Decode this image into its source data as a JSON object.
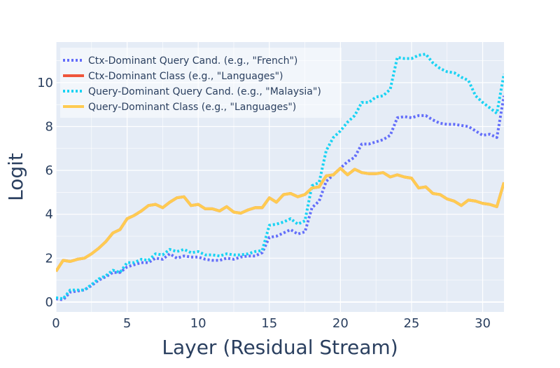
{
  "chart_data": {
    "type": "line",
    "xlabel": "Layer (Residual Stream)",
    "ylabel": "Logit",
    "xlim": [
      0,
      31.5
    ],
    "ylim": [
      -0.45,
      11.85
    ],
    "xticks": [
      0,
      5,
      10,
      15,
      20,
      25,
      30
    ],
    "yticks": [
      0,
      2,
      4,
      6,
      8,
      10
    ],
    "grid": true,
    "legend_position": "top-left",
    "x": [
      0,
      0.5,
      1,
      1.5,
      2,
      2.5,
      3,
      3.5,
      4,
      4.5,
      5,
      5.5,
      6,
      6.5,
      7,
      7.5,
      8,
      8.5,
      9,
      9.5,
      10,
      10.5,
      11,
      11.5,
      12,
      12.5,
      13,
      13.5,
      14,
      14.5,
      15,
      15.5,
      16,
      16.5,
      17,
      17.5,
      18,
      18.5,
      19,
      19.5,
      20,
      20.5,
      21,
      21.5,
      22,
      22.5,
      23,
      23.5,
      24,
      24.5,
      25,
      25.5,
      26,
      26.5,
      27,
      27.5,
      28,
      28.5,
      29,
      29.5,
      30,
      30.5,
      31,
      31.5
    ],
    "series": [
      {
        "name": "Ctx-Dominant Query Cand. (e.g., \"French\")",
        "color": "#636efa",
        "dash": "dot",
        "values": [
          0.15,
          0.1,
          0.45,
          0.5,
          0.55,
          0.75,
          1.0,
          1.15,
          1.35,
          1.35,
          1.6,
          1.7,
          1.8,
          1.8,
          2.0,
          1.95,
          2.2,
          2.0,
          2.1,
          2.05,
          2.05,
          1.95,
          1.9,
          1.9,
          2.0,
          1.95,
          2.05,
          2.1,
          2.1,
          2.25,
          2.95,
          3.0,
          3.15,
          3.3,
          3.1,
          3.2,
          4.3,
          4.6,
          5.5,
          5.8,
          6.1,
          6.4,
          6.6,
          7.2,
          7.2,
          7.3,
          7.4,
          7.6,
          8.4,
          8.45,
          8.4,
          8.5,
          8.5,
          8.3,
          8.15,
          8.1,
          8.1,
          8.05,
          8.0,
          7.8,
          7.6,
          7.65,
          7.5,
          9.4
        ]
      },
      {
        "name": "Ctx-Dominant Class (e.g., \"Languages\")",
        "color": "#ef553b",
        "dash": "solid",
        "values": [
          1.4,
          1.9,
          1.85,
          1.95,
          2.0,
          2.2,
          2.45,
          2.75,
          3.15,
          3.3,
          3.8,
          3.95,
          4.15,
          4.4,
          4.45,
          4.3,
          4.55,
          4.75,
          4.8,
          4.4,
          4.45,
          4.25,
          4.25,
          4.15,
          4.35,
          4.1,
          4.05,
          4.2,
          4.3,
          4.3,
          4.75,
          4.55,
          4.9,
          4.95,
          4.8,
          4.9,
          5.2,
          5.25,
          5.75,
          5.8,
          6.1,
          5.8,
          6.05,
          5.9,
          5.85,
          5.85,
          5.9,
          5.7,
          5.8,
          5.7,
          5.65,
          5.2,
          5.25,
          4.95,
          4.9,
          4.7,
          4.6,
          4.4,
          4.65,
          4.6,
          4.5,
          4.45,
          4.35,
          5.45
        ]
      },
      {
        "name": "Query-Dominant Query Cand. (e.g., \"Malaysia\")",
        "color": "#19d3f3",
        "dash": "dot",
        "values": [
          0.2,
          0.15,
          0.55,
          0.55,
          0.55,
          0.8,
          1.05,
          1.2,
          1.45,
          1.35,
          1.8,
          1.8,
          1.95,
          1.9,
          2.2,
          2.15,
          2.4,
          2.3,
          2.4,
          2.25,
          2.3,
          2.15,
          2.15,
          2.1,
          2.2,
          2.15,
          2.15,
          2.2,
          2.3,
          2.35,
          3.5,
          3.55,
          3.65,
          3.8,
          3.55,
          3.7,
          5.3,
          5.45,
          6.9,
          7.5,
          7.8,
          8.2,
          8.5,
          9.1,
          9.1,
          9.35,
          9.4,
          9.7,
          11.15,
          11.1,
          11.1,
          11.25,
          11.3,
          10.9,
          10.65,
          10.5,
          10.45,
          10.25,
          10.1,
          9.4,
          9.1,
          8.85,
          8.6,
          10.4
        ]
      },
      {
        "name": "Query-Dominant Class (e.g., \"Languages\")",
        "color": "#fecb52",
        "dash": "solid",
        "values": [
          1.4,
          1.9,
          1.85,
          1.95,
          2.0,
          2.2,
          2.45,
          2.75,
          3.15,
          3.3,
          3.8,
          3.95,
          4.15,
          4.4,
          4.45,
          4.3,
          4.55,
          4.75,
          4.8,
          4.4,
          4.45,
          4.25,
          4.25,
          4.15,
          4.35,
          4.1,
          4.05,
          4.2,
          4.3,
          4.3,
          4.75,
          4.55,
          4.9,
          4.95,
          4.8,
          4.9,
          5.2,
          5.25,
          5.75,
          5.8,
          6.1,
          5.8,
          6.05,
          5.9,
          5.85,
          5.85,
          5.9,
          5.7,
          5.8,
          5.7,
          5.65,
          5.2,
          5.25,
          4.95,
          4.9,
          4.7,
          4.6,
          4.4,
          4.65,
          4.6,
          4.5,
          4.45,
          4.35,
          5.45
        ]
      }
    ]
  }
}
